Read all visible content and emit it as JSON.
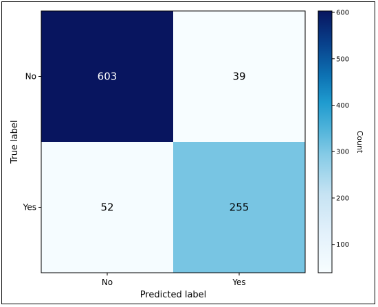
{
  "chart_data": {
    "type": "heatmap",
    "x_categories": [
      "No",
      "Yes"
    ],
    "y_categories": [
      "No",
      "Yes"
    ],
    "values": [
      [
        603,
        39
      ],
      [
        52,
        255
      ]
    ],
    "xlabel": "Predicted label",
    "ylabel": "True label",
    "colorbar": {
      "label": "Count",
      "range": [
        39,
        603
      ],
      "ticks": [
        100,
        200,
        300,
        400,
        500,
        600
      ],
      "colormap": "Blues"
    },
    "colors": {
      "cell_603": "#08155f",
      "cell_255": "#78c5e3",
      "cell_52": "#f5fcff",
      "cell_39": "#f7fdff"
    }
  }
}
